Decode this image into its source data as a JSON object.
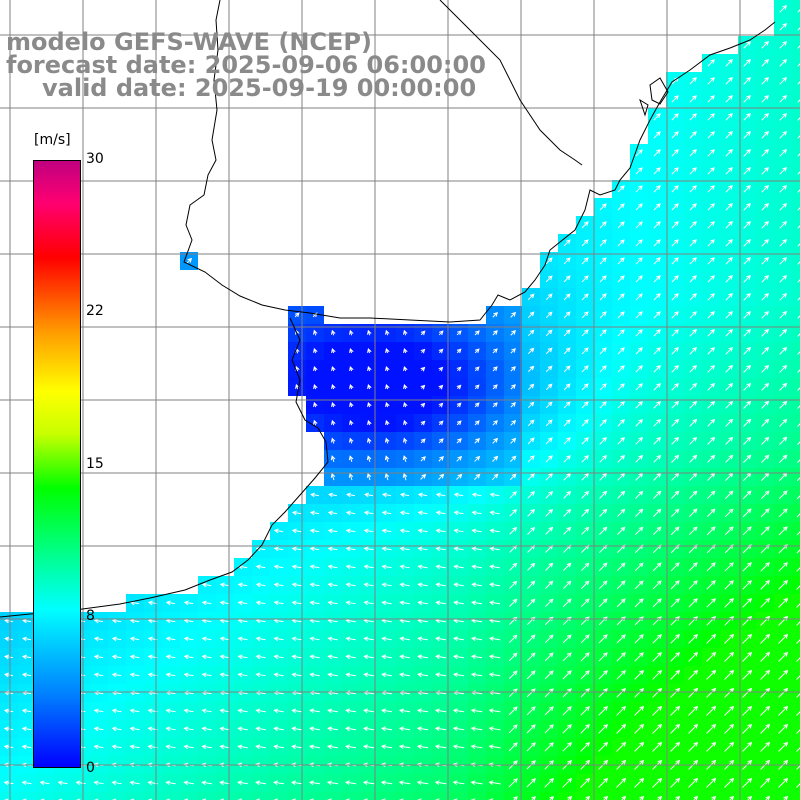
{
  "title": {
    "line1": "modelo GEFS-WAVE (NCEP)",
    "line2": "forecast date: 2025-09-06 06:00:00",
    "line3": "valid date: 2025-09-19 00:00:00"
  },
  "colorbar": {
    "unit": "[m/s]",
    "ticks": [
      "30",
      "22",
      "15",
      "8",
      "0"
    ],
    "tick_values": [
      30,
      22,
      15,
      8,
      0
    ],
    "range": [
      0,
      30
    ],
    "colors": [
      "#0000ff",
      "#0080ff",
      "#00ffff",
      "#00ff00",
      "#ffff00",
      "#ff9900",
      "#ff0000",
      "#c00080"
    ]
  },
  "map": {
    "land_color": "#ffffff",
    "coast_color": "#000000",
    "grid_color": "#808080",
    "arrow_color": "#ffffff"
  }
}
